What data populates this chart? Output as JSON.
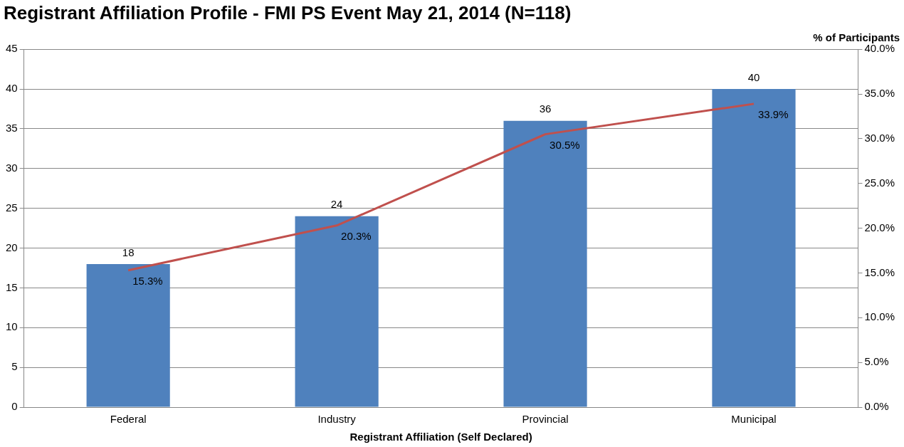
{
  "chart_data": {
    "type": "bar",
    "title": "Registrant Affiliation Profile - FMI PS Event May 21, 2014 (N=118)",
    "xlabel": "Registrant Affiliation (Self Declared)",
    "y2label": "% of Participants",
    "categories": [
      "Federal",
      "Industry",
      "Provincial",
      "Municipal"
    ],
    "series": [
      {
        "color": "#4f81bd",
        "values": [
          18,
          24,
          36,
          40
        ],
        "value_labels": [
          "18",
          "24",
          "36",
          "40"
        ]
      },
      {
        "type": "line",
        "axis": "y2",
        "color": "#c0504d",
        "values": [
          15.3,
          20.3,
          30.5,
          33.9
        ],
        "value_labels": [
          "15.3%",
          "20.3%",
          "30.5%",
          "33.9%"
        ]
      }
    ],
    "ylim": [
      0,
      45
    ],
    "yticks": [
      0,
      5,
      10,
      15,
      20,
      25,
      30,
      35,
      40,
      45
    ],
    "y2lim": [
      0,
      40
    ],
    "y2ticks": [
      {
        "value": 0,
        "label": "0.0%"
      },
      {
        "value": 5,
        "label": "5.0%"
      },
      {
        "value": 10,
        "label": "10.0%"
      },
      {
        "value": 15,
        "label": "15.0%"
      },
      {
        "value": 20,
        "label": "20.0%"
      },
      {
        "value": 25,
        "label": "25.0%"
      },
      {
        "value": 30,
        "label": "30.0%"
      },
      {
        "value": 35,
        "label": "35.0%"
      },
      {
        "value": 40,
        "label": "40.0%"
      }
    ],
    "grid": "y",
    "legend": false,
    "marker": "none"
  }
}
